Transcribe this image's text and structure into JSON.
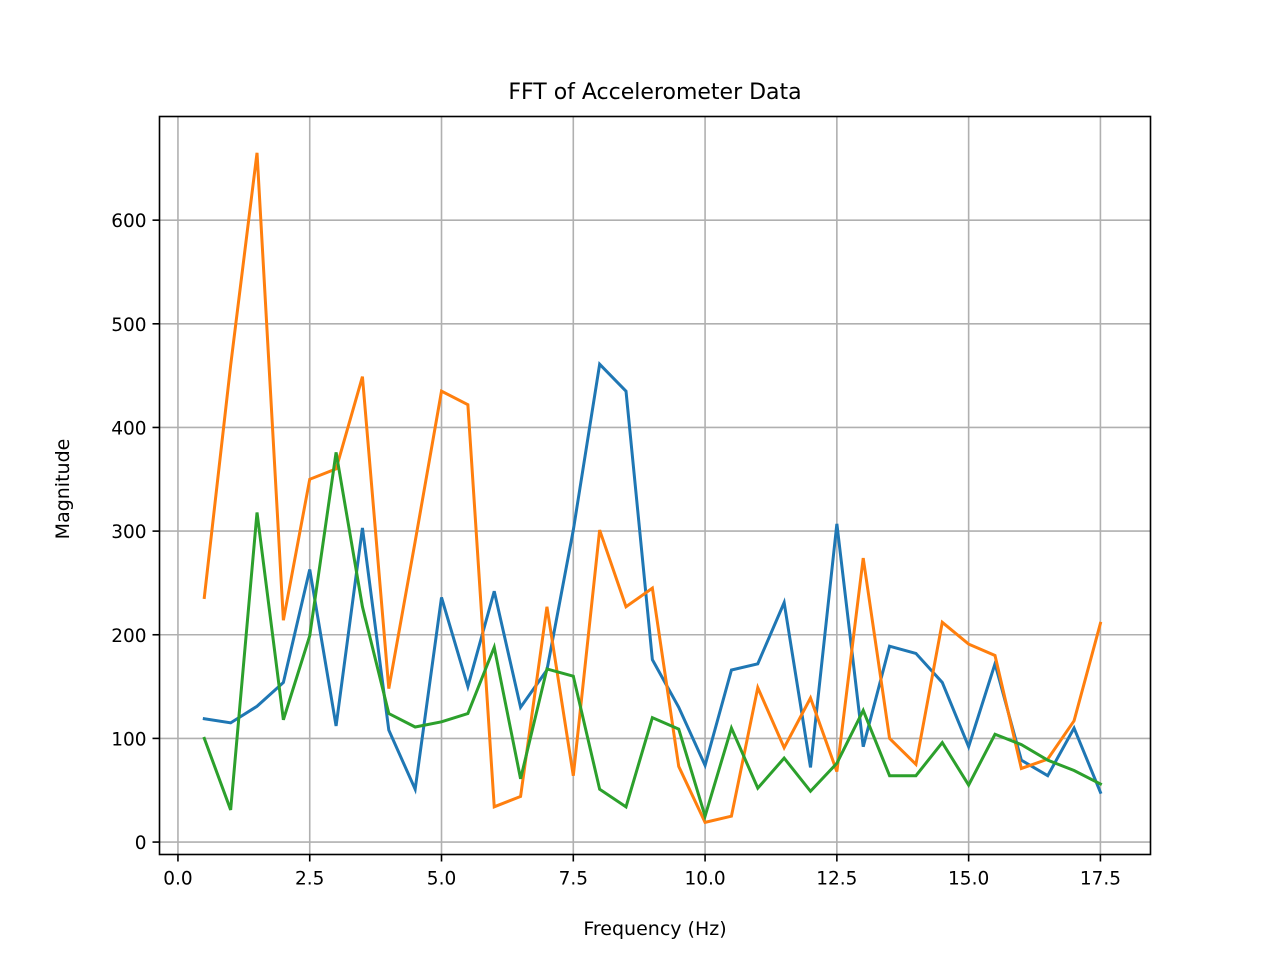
{
  "chart_data": {
    "type": "line",
    "title": "FFT of Accelerometer Data",
    "xlabel": "Frequency (Hz)",
    "ylabel": "Magnitude",
    "xlim": [
      -0.35,
      18.45
    ],
    "ylim": [
      -12,
      700
    ],
    "xticks": [
      0.0,
      2.5,
      5.0,
      7.5,
      10.0,
      12.5,
      15.0,
      17.5
    ],
    "xtick_labels": [
      "0.0",
      "2.5",
      "5.0",
      "7.5",
      "10.0",
      "12.5",
      "15.0",
      "17.5"
    ],
    "yticks": [
      0,
      100,
      200,
      300,
      400,
      500,
      600
    ],
    "ytick_labels": [
      "0",
      "100",
      "200",
      "300",
      "400",
      "500",
      "600"
    ],
    "grid": true,
    "x": [
      0.5,
      1.0,
      1.5,
      2.0,
      2.5,
      3.0,
      3.5,
      4.0,
      4.5,
      5.0,
      5.5,
      6.0,
      6.5,
      7.0,
      7.5,
      8.0,
      8.5,
      9.0,
      9.5,
      10.0,
      10.5,
      11.0,
      11.5,
      12.0,
      12.5,
      13.0,
      13.5,
      14.0,
      14.5,
      15.0,
      15.5,
      16.0,
      16.5,
      17.0,
      17.5
    ],
    "series": [
      {
        "color": "#1f77b4",
        "values": [
          119,
          115,
          131,
          154,
          263,
          112,
          303,
          108,
          51,
          236,
          150,
          242,
          130,
          166,
          301,
          461,
          435,
          176,
          130,
          74,
          166,
          172,
          231,
          72,
          307,
          92,
          189,
          182,
          154,
          92,
          172,
          79,
          64,
          110,
          48
        ]
      },
      {
        "color": "#ff7f0e",
        "values": [
          236,
          460,
          665,
          214,
          350,
          360,
          449,
          148,
          290,
          435,
          422,
          34,
          44,
          227,
          64,
          301,
          227,
          245,
          73,
          19,
          25,
          149,
          91,
          139,
          68,
          274,
          100,
          75,
          212,
          191,
          180,
          71,
          80,
          117,
          211
        ]
      },
      {
        "color": "#2ca02c",
        "values": [
          100,
          31,
          318,
          118,
          199,
          376,
          227,
          124,
          111,
          116,
          124,
          188,
          61,
          167,
          160,
          51,
          34,
          120,
          109,
          25,
          110,
          52,
          81,
          49,
          76,
          127,
          64,
          64,
          96,
          55,
          104,
          94,
          79,
          69,
          56
        ]
      }
    ]
  }
}
